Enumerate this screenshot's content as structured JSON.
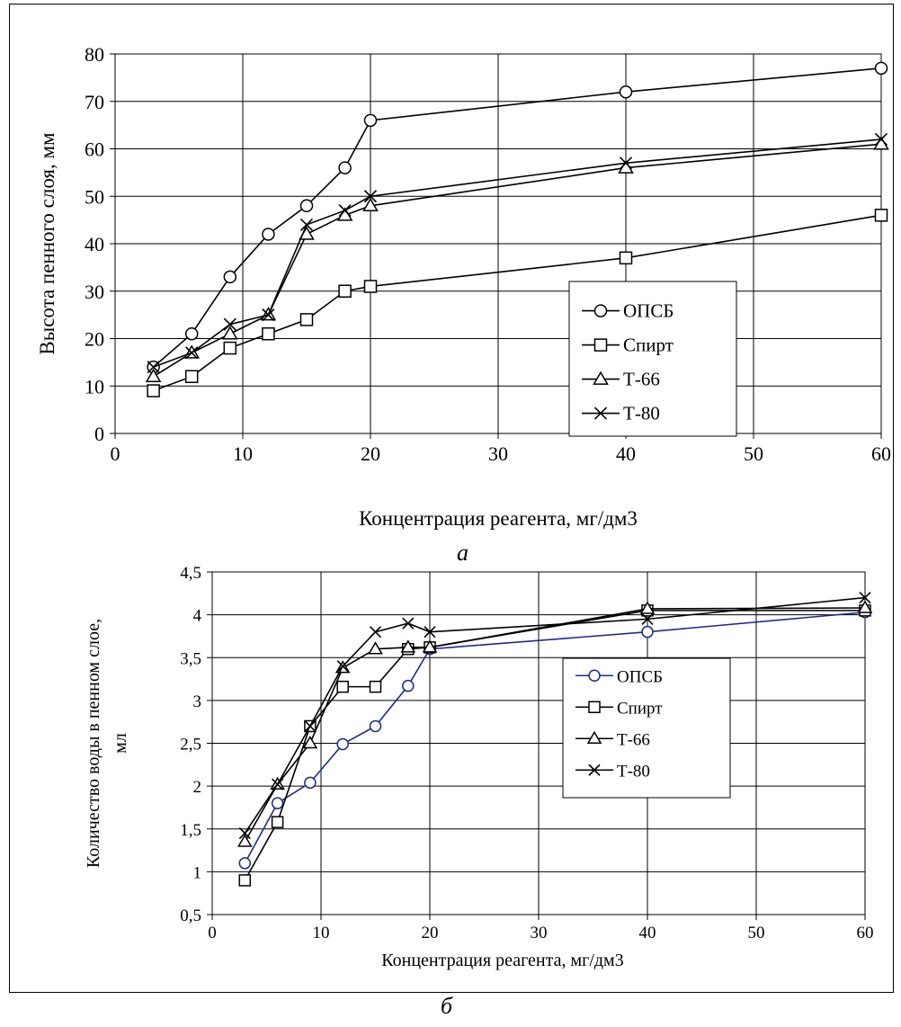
{
  "captions": {
    "a": "а",
    "b": "б"
  },
  "chart_data": [
    {
      "type": "line",
      "xlabel": "Концентрация реагента, мг/дм3",
      "ylabel": "Высота пенного слоя, мм",
      "xlim": [
        0,
        60
      ],
      "ylim": [
        0,
        80
      ],
      "xticks": [
        0,
        10,
        20,
        30,
        40,
        50,
        60
      ],
      "yticks": [
        0,
        10,
        20,
        30,
        40,
        50,
        60,
        70,
        80
      ],
      "grid": true,
      "legend_position": "right",
      "series": [
        {
          "name": "ОПСБ",
          "marker": "circle",
          "color": "#000000",
          "x": [
            3,
            6,
            9,
            12,
            15,
            18,
            20,
            40,
            60
          ],
          "y": [
            14,
            21,
            33,
            42,
            48,
            56,
            66,
            72,
            77
          ]
        },
        {
          "name": "Спирт",
          "marker": "square",
          "color": "#000000",
          "x": [
            3,
            6,
            9,
            12,
            15,
            18,
            20,
            40,
            60
          ],
          "y": [
            9,
            12,
            18,
            21,
            24,
            30,
            31,
            37,
            46
          ]
        },
        {
          "name": "Т-66",
          "marker": "triangle",
          "color": "#000000",
          "x": [
            3,
            6,
            9,
            12,
            15,
            18,
            20,
            40,
            60
          ],
          "y": [
            12,
            17,
            21,
            25,
            42,
            46,
            48,
            56,
            61
          ]
        },
        {
          "name": "Т-80",
          "marker": "x",
          "color": "#000000",
          "x": [
            3,
            6,
            9,
            12,
            15,
            18,
            20,
            40,
            60
          ],
          "y": [
            14,
            17,
            23,
            25,
            44,
            47,
            50,
            57,
            62
          ]
        }
      ]
    },
    {
      "type": "line",
      "xlabel": "Концентрация реагента, мг/дм3",
      "ylabel_lines": [
        "Количество воды в пенном слое,",
        "мл"
      ],
      "xlim": [
        0,
        60
      ],
      "ylim": [
        0.5,
        4.5
      ],
      "xticks": [
        0,
        10,
        20,
        30,
        40,
        50,
        60
      ],
      "yticks": [
        0.5,
        1,
        1.5,
        2,
        2.5,
        3,
        3.5,
        4,
        4.5
      ],
      "ytick_labels": [
        "0,5",
        "1",
        "1,5",
        "2",
        "2,5",
        "3",
        "3,5",
        "4",
        "4,5"
      ],
      "grid": true,
      "legend_position": "right",
      "series": [
        {
          "name": "ОПСБ",
          "marker": "circle",
          "color": "#1f2a8c",
          "x": [
            3,
            6,
            9,
            12,
            15,
            18,
            20,
            40,
            60
          ],
          "y": [
            1.1,
            1.8,
            2.04,
            2.49,
            2.7,
            3.17,
            3.6,
            3.8,
            4.03
          ]
        },
        {
          "name": "Спирт",
          "marker": "square",
          "color": "#000000",
          "x": [
            3,
            6,
            9,
            12,
            15,
            18,
            20,
            40,
            60
          ],
          "y": [
            0.9,
            1.58,
            2.7,
            3.16,
            3.16,
            3.6,
            3.62,
            4.05,
            4.05
          ]
        },
        {
          "name": "Т-66",
          "marker": "triangle",
          "color": "#000000",
          "x": [
            3,
            6,
            9,
            12,
            15,
            18,
            20,
            40,
            60
          ],
          "y": [
            1.35,
            2.02,
            2.5,
            3.38,
            3.6,
            3.62,
            3.62,
            4.07,
            4.08
          ]
        },
        {
          "name": "Т-80",
          "marker": "x",
          "color": "#000000",
          "x": [
            3,
            6,
            9,
            12,
            15,
            18,
            20,
            40,
            60
          ],
          "y": [
            1.45,
            2.02,
            2.7,
            3.4,
            3.8,
            3.9,
            3.8,
            3.95,
            4.2
          ]
        }
      ]
    }
  ]
}
